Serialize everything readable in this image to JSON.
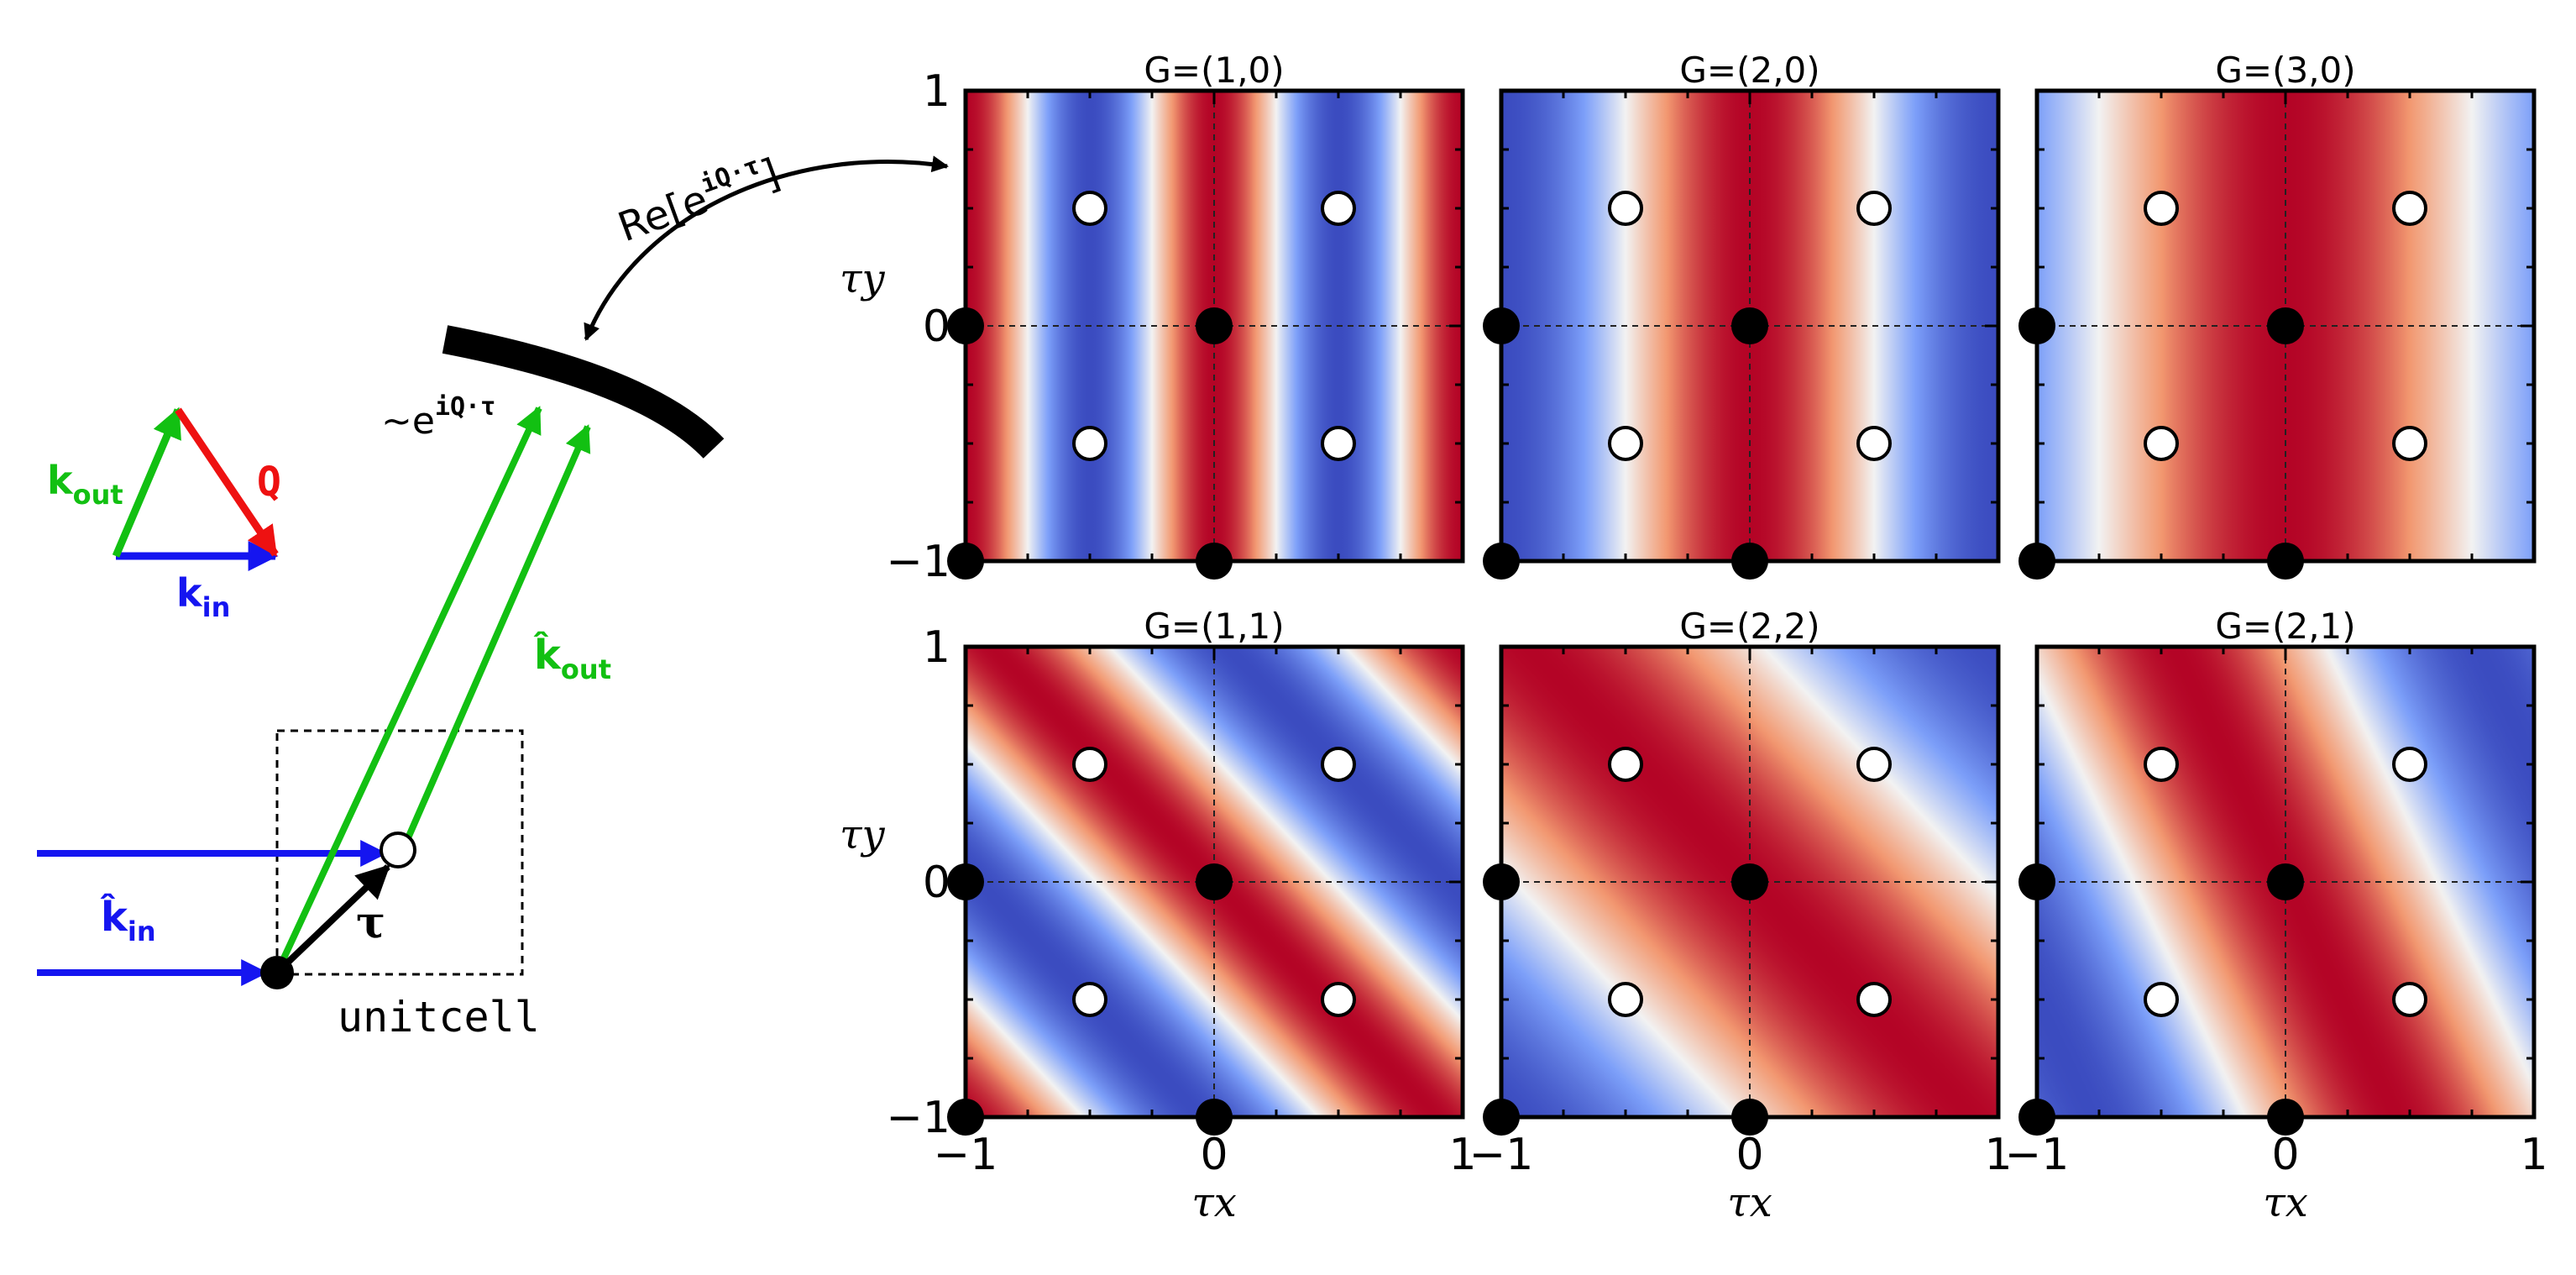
{
  "colors": {
    "blue": "#1515f0",
    "green": "#12c012",
    "red": "#ee1111",
    "black": "#000000",
    "map_low": "#3b4cc0",
    "map_mid": "#f2f2f2",
    "map_high": "#b40426"
  },
  "schematic": {
    "triangle": {
      "k_out_base": "k",
      "k_out_sub": "out",
      "q_label": "Q",
      "k_in_base": "k",
      "k_in_sub": "in"
    },
    "k_hat_out_base": "k̂",
    "k_hat_out_sub": "out",
    "k_hat_in_base": "k̂",
    "k_hat_in_sub": "in",
    "tau_label": "τ",
    "unitcell_label": "unitcell",
    "phase_prefix": "~e",
    "phase_exponent": "iQ·τ",
    "re_prefix": "Re[e",
    "re_exponent": "iQ·τ",
    "re_suffix": "]"
  },
  "panel_titles": [
    "G=(1,0)",
    "G=(2,0)",
    "G=(3,0)",
    "G=(1,1)",
    "G=(2,2)",
    "G=(2,1)"
  ],
  "chart_data": {
    "type": "heatmap",
    "function": "Re[exp(i 2π G·τ)]",
    "xlabel": "τx",
    "ylabel": "τy",
    "xlim": [
      -1,
      1
    ],
    "ylim": [
      -1,
      1
    ],
    "colormap": "coolwarm",
    "grid": "dashed lines at τx=0 and τy=0",
    "x_ticks": [
      {
        "value": -1,
        "label": "−1"
      },
      {
        "value": 0,
        "label": "0"
      },
      {
        "value": 1,
        "label": "1"
      }
    ],
    "y_ticks": [
      {
        "value": 1,
        "label": "1"
      },
      {
        "value": 0,
        "label": "0"
      },
      {
        "value": -1,
        "label": "−1"
      }
    ],
    "panels": [
      {
        "title": "G=(1,0)",
        "G": [
          1,
          0
        ]
      },
      {
        "title": "G=(2,0)",
        "G": [
          2,
          0
        ]
      },
      {
        "title": "G=(3,0)",
        "G": [
          3,
          0
        ]
      },
      {
        "title": "G=(1,1)",
        "G": [
          1,
          1
        ]
      },
      {
        "title": "G=(2,2)",
        "G": [
          2,
          2
        ]
      },
      {
        "title": "G=(2,1)",
        "G": [
          2,
          1
        ]
      }
    ],
    "filled_points": [
      [
        -1,
        0
      ],
      [
        0,
        0
      ],
      [
        -1,
        -1
      ],
      [
        0,
        -1
      ]
    ],
    "open_points": [
      [
        -0.5,
        0.5
      ],
      [
        0.5,
        0.5
      ],
      [
        -0.5,
        -0.5
      ],
      [
        0.5,
        -0.5
      ]
    ]
  }
}
